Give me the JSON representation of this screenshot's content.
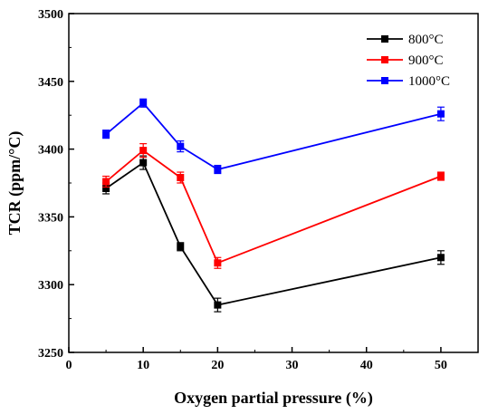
{
  "chart_data": {
    "type": "line",
    "title": "",
    "xlabel": "Oxygen partial pressure (%)",
    "ylabel": "TCR (ppm/°C)",
    "xlim": [
      0,
      55
    ],
    "ylim": [
      3250,
      3500
    ],
    "xticks": [
      0,
      10,
      20,
      30,
      40,
      50
    ],
    "yticks": [
      3250,
      3300,
      3350,
      3400,
      3450,
      3500
    ],
    "grid": false,
    "legend_position": "top-right",
    "x": [
      5,
      10,
      15,
      20,
      50
    ],
    "series": [
      {
        "name": "800°C",
        "color": "#000000",
        "values": [
          3371,
          3390,
          3328,
          3285,
          3320
        ],
        "errors": [
          4,
          5,
          3,
          5,
          5
        ]
      },
      {
        "name": "900°C",
        "color": "#ff0000",
        "values": [
          3376,
          3399,
          3379,
          3316,
          3380
        ],
        "errors": [
          4,
          5,
          4,
          4,
          3
        ]
      },
      {
        "name": "1000°C",
        "color": "#0000ff",
        "values": [
          3411,
          3434,
          3402,
          3385,
          3426
        ],
        "errors": [
          3,
          3,
          4,
          3,
          5
        ]
      }
    ]
  }
}
